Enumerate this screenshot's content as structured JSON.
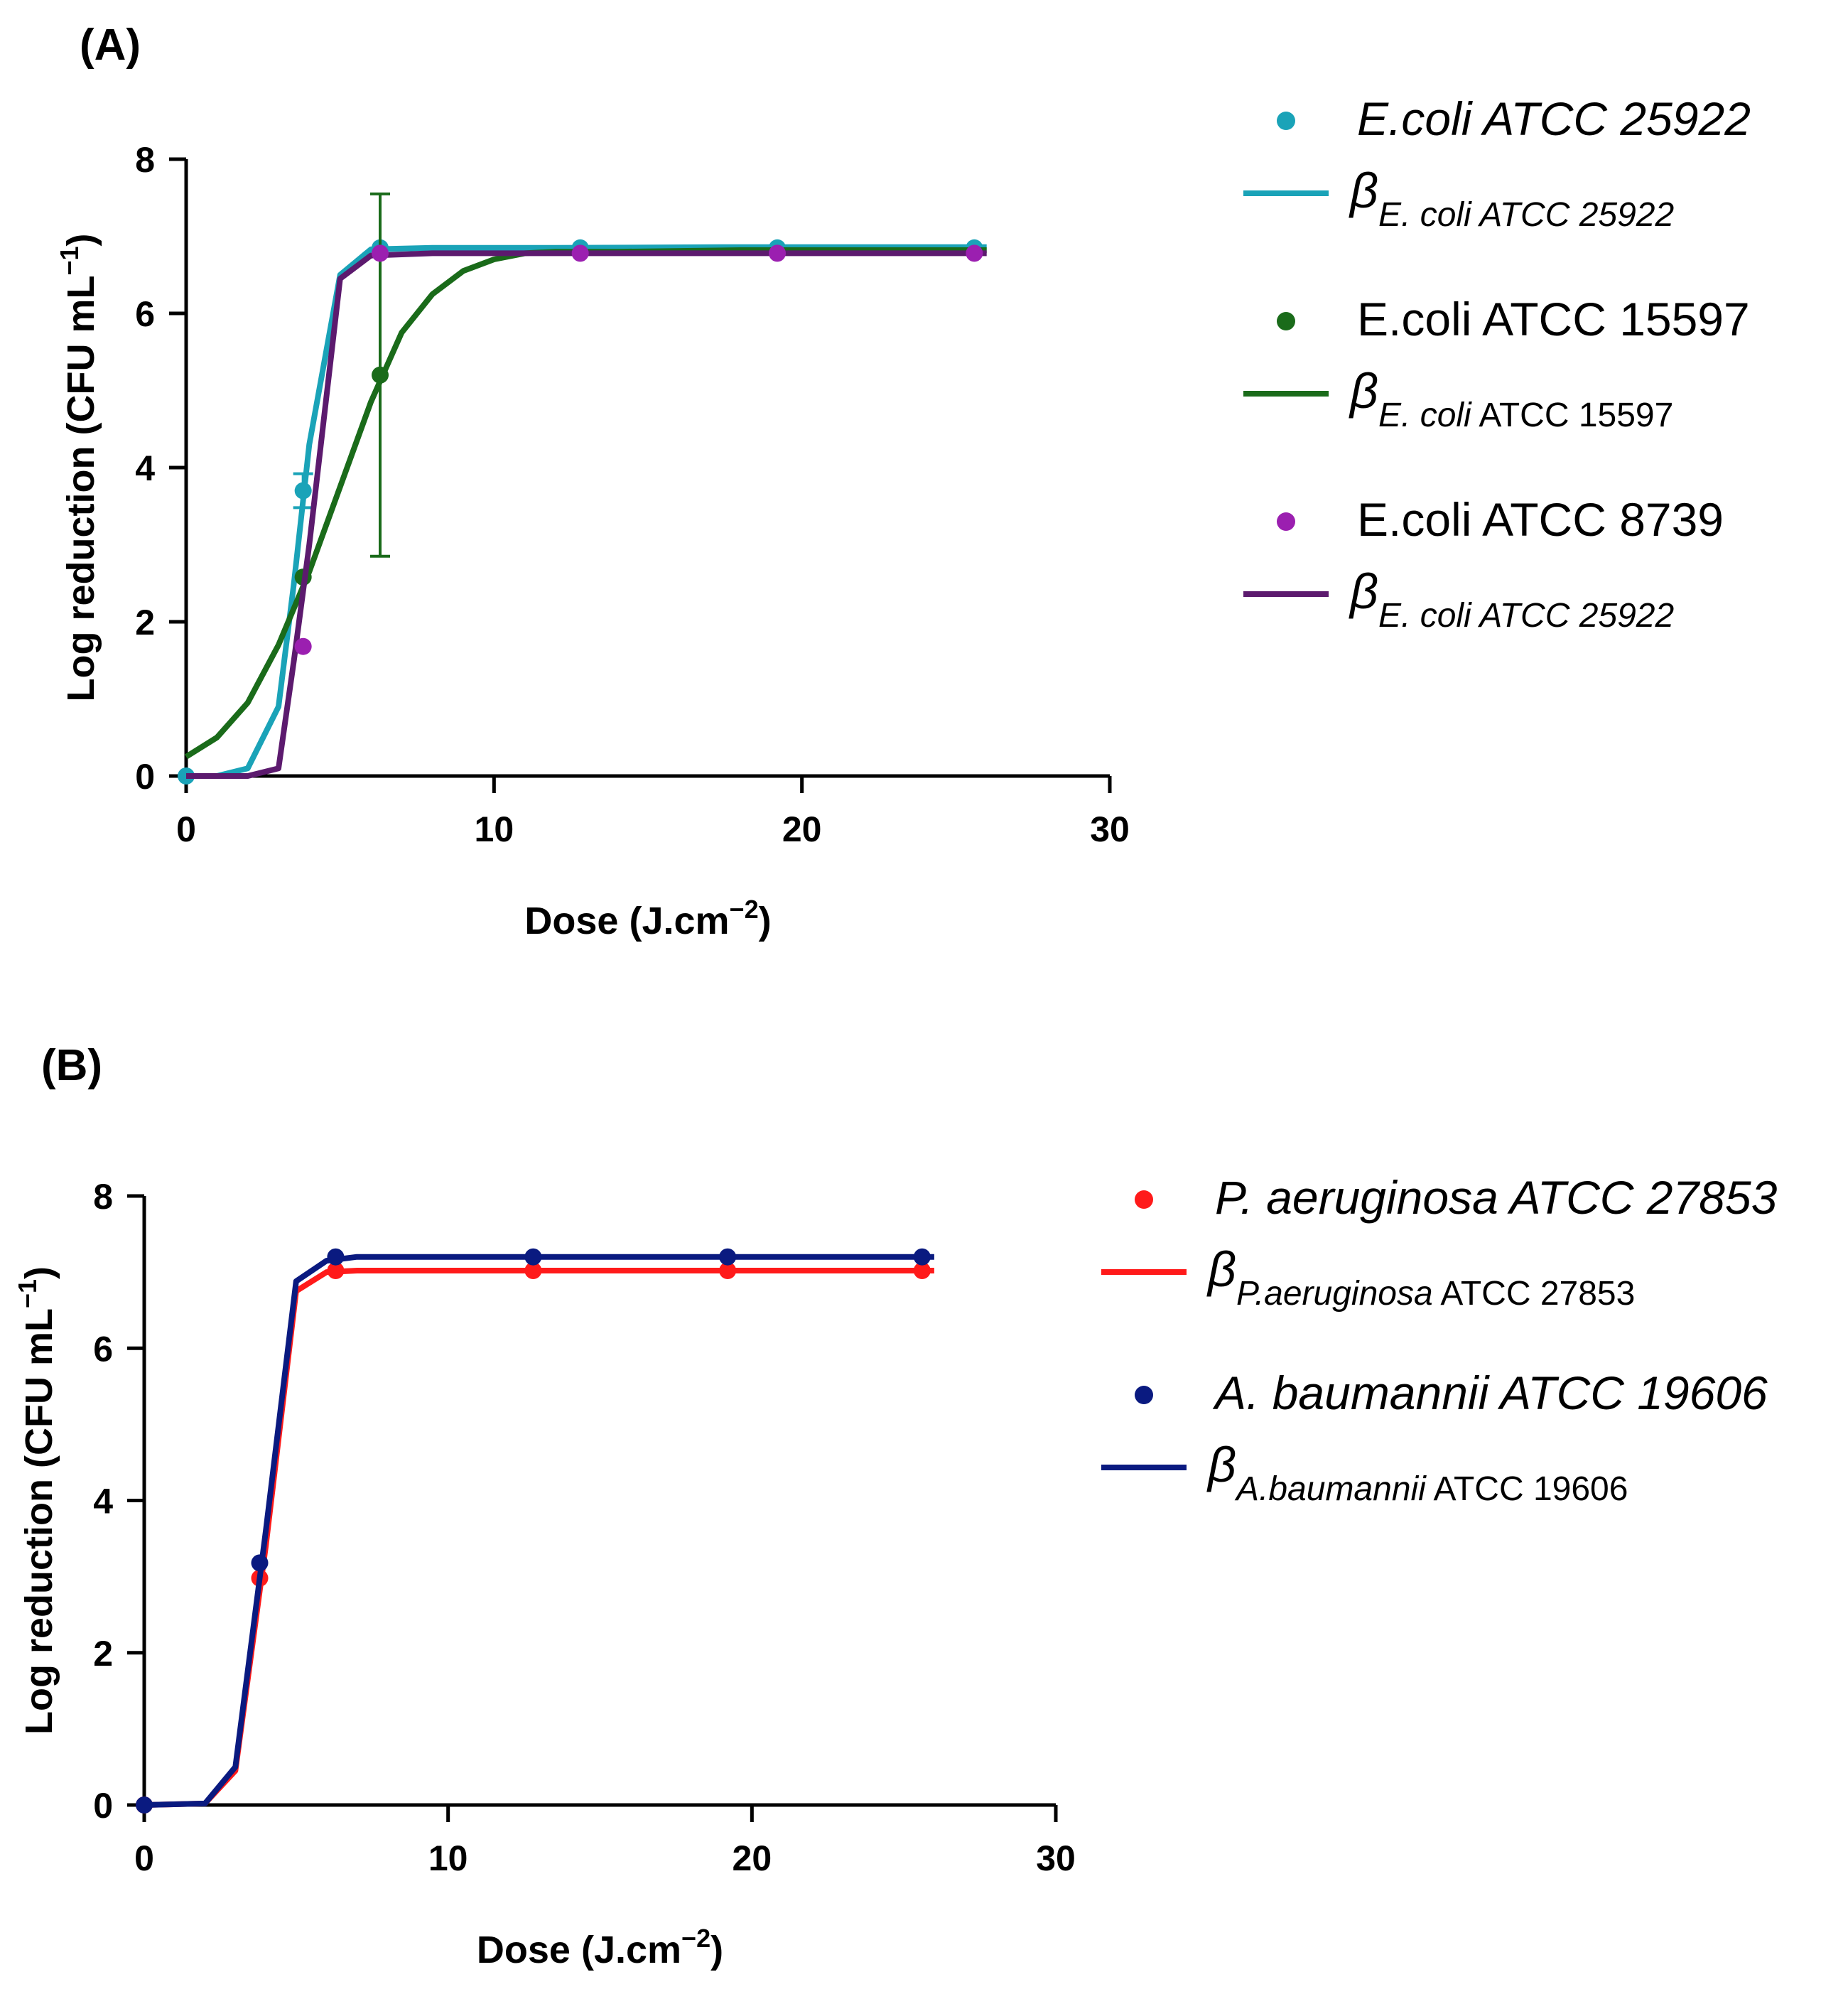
{
  "chart_data": [
    {
      "panel": "(A)",
      "type": "line",
      "xlabel": "Dose (J.cm",
      "xlabel_sup": "−2",
      "xlabel_end": ")",
      "ylabel": "Log reduction (CFU mL",
      "ylabel_sup": "−1",
      "ylabel_end": ")",
      "xlim": [
        0,
        30
      ],
      "ylim": [
        0,
        8
      ],
      "xticks": [
        "0",
        "10",
        "20",
        "30"
      ],
      "yticks": [
        "0",
        "2",
        "4",
        "6",
        "8"
      ],
      "series": [
        {
          "name": "E.coli ATCC 25922",
          "italic": true,
          "color": "#1aa3b8",
          "points": [
            [
              0,
              0
            ],
            [
              3.8,
              3.7
            ],
            [
              6.3,
              6.85
            ],
            [
              12.8,
              6.85
            ],
            [
              19.2,
              6.85
            ],
            [
              25.6,
              6.85
            ]
          ],
          "errors": [
            0,
            0.22,
            0,
            0,
            0,
            0
          ],
          "fit": [
            [
              0,
              0
            ],
            [
              1,
              0
            ],
            [
              2,
              0.1
            ],
            [
              3,
              0.9
            ],
            [
              3.5,
              2.5
            ],
            [
              4,
              4.3
            ],
            [
              5,
              6.5
            ],
            [
              6,
              6.83
            ],
            [
              8,
              6.85
            ],
            [
              12,
              6.85
            ],
            [
              18,
              6.86
            ],
            [
              26,
              6.86
            ]
          ],
          "fit_label": "β",
          "fit_sub_italic": "E. coli ATCC 25922",
          "fit_sub_plain": ""
        },
        {
          "name": "E.coli ATCC 15597",
          "italic": false,
          "color": "#1a6b1a",
          "points": [
            [
              3.8,
              2.58
            ],
            [
              6.3,
              5.2
            ]
          ],
          "errors": [
            0,
            2.35
          ],
          "fit": [
            [
              0,
              0.25
            ],
            [
              1,
              0.5
            ],
            [
              2,
              0.95
            ],
            [
              3,
              1.7
            ],
            [
              4,
              2.65
            ],
            [
              5,
              3.75
            ],
            [
              6,
              4.85
            ],
            [
              7,
              5.75
            ],
            [
              8,
              6.25
            ],
            [
              9,
              6.55
            ],
            [
              10,
              6.7
            ],
            [
              11,
              6.78
            ],
            [
              12,
              6.8
            ],
            [
              14,
              6.8
            ],
            [
              18,
              6.82
            ],
            [
              22,
              6.82
            ],
            [
              26,
              6.82
            ]
          ],
          "fit_label": "β",
          "fit_sub_italic": "E. coli",
          "fit_sub_plain": " ATCC 15597"
        },
        {
          "name": "E.coli ATCC 8739",
          "italic": false,
          "color": "#9b1fb0",
          "line_color": "#5c1a6e",
          "points": [
            [
              3.8,
              1.68
            ],
            [
              6.3,
              6.78
            ],
            [
              12.8,
              6.78
            ],
            [
              19.2,
              6.78
            ],
            [
              25.6,
              6.78
            ]
          ],
          "errors": [
            0,
            0,
            0,
            0,
            0
          ],
          "fit": [
            [
              0,
              0
            ],
            [
              2,
              0
            ],
            [
              3,
              0.1
            ],
            [
              3.5,
              1.5
            ],
            [
              4,
              3.0
            ],
            [
              5,
              6.45
            ],
            [
              6,
              6.75
            ],
            [
              8,
              6.78
            ],
            [
              26,
              6.78
            ]
          ],
          "fit_label": "β",
          "fit_sub_italic": "E. coli ATCC 25922",
          "fit_sub_plain": ""
        }
      ]
    },
    {
      "panel": "(B)",
      "type": "line",
      "xlabel": "Dose (J.cm",
      "xlabel_sup": "−2",
      "xlabel_end": ")",
      "ylabel": "Log reduction (CFU mL",
      "ylabel_sup": "−1",
      "ylabel_end": ")",
      "xlim": [
        0,
        30
      ],
      "ylim": [
        0,
        8
      ],
      "xticks": [
        "0",
        "10",
        "20",
        "30"
      ],
      "yticks": [
        "0",
        "2",
        "4",
        "6",
        "8"
      ],
      "series": [
        {
          "name": "P. aeruginosa ATCC 27853",
          "italic": true,
          "color": "#ff1a1a",
          "points": [
            [
              0,
              0
            ],
            [
              3.8,
              2.98
            ],
            [
              6.3,
              7.02
            ],
            [
              12.8,
              7.02
            ],
            [
              19.2,
              7.02
            ],
            [
              25.6,
              7.02
            ]
          ],
          "errors": [
            0,
            0,
            0,
            0,
            0,
            0
          ],
          "fit": [
            [
              0,
              0
            ],
            [
              2,
              0.02
            ],
            [
              3,
              0.45
            ],
            [
              4,
              3.4
            ],
            [
              5,
              6.75
            ],
            [
              6,
              7.0
            ],
            [
              7,
              7.02
            ],
            [
              26,
              7.02
            ]
          ],
          "fit_label": "β",
          "fit_sub_italic": "P.aeruginosa",
          "fit_sub_plain": " ATCC 27853"
        },
        {
          "name": "A. baumannii ATCC 19606",
          "italic": true,
          "color": "#0a1a80",
          "points": [
            [
              0,
              0
            ],
            [
              3.8,
              3.18
            ],
            [
              6.3,
              7.2
            ],
            [
              12.8,
              7.2
            ],
            [
              19.2,
              7.2
            ],
            [
              25.6,
              7.2
            ]
          ],
          "errors": [
            0,
            0,
            0,
            0,
            0,
            0
          ],
          "fit": [
            [
              0,
              0
            ],
            [
              2,
              0.02
            ],
            [
              3,
              0.5
            ],
            [
              4,
              3.6
            ],
            [
              5,
              6.88
            ],
            [
              6,
              7.15
            ],
            [
              7,
              7.2
            ],
            [
              26,
              7.2
            ]
          ],
          "fit_label": "β",
          "fit_sub_italic": "A.baumannii",
          "fit_sub_plain": " ATCC 19606"
        }
      ]
    }
  ]
}
